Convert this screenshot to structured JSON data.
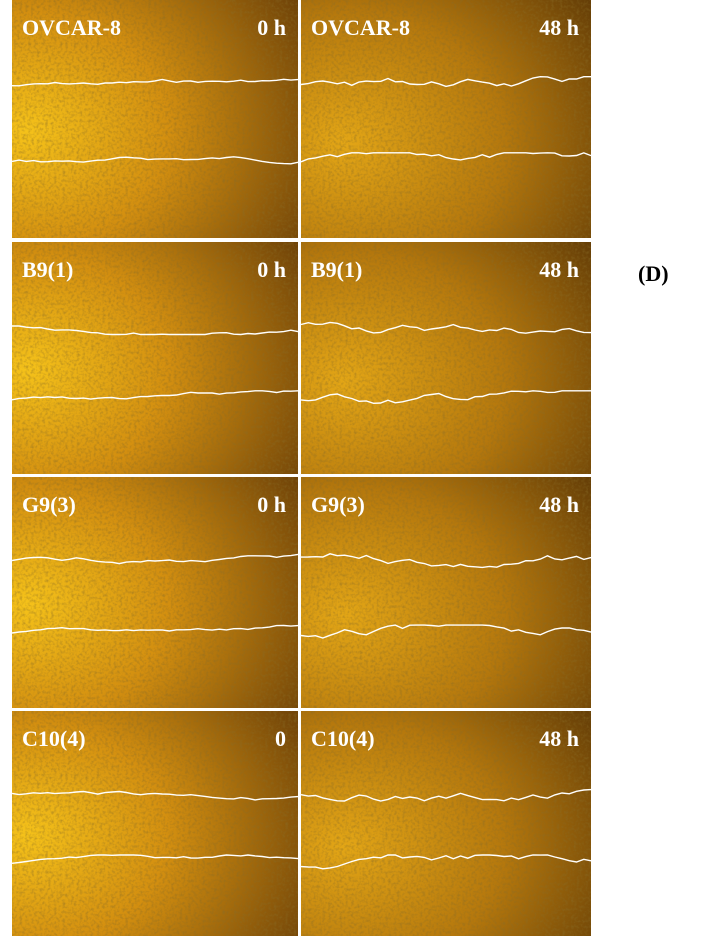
{
  "figure": {
    "panel_label": "(D)",
    "panels": [
      {
        "label": "OVCAR-8",
        "time": "0 h"
      },
      {
        "label": "OVCAR-8",
        "time": "48 h"
      },
      {
        "label": "B9(1)",
        "time": "0 h"
      },
      {
        "label": "B9(1)",
        "time": "48 h"
      },
      {
        "label": "G9(3)",
        "time": "0 h"
      },
      {
        "label": "G9(3)",
        "time": "48 h"
      },
      {
        "label": "C10(4)",
        "time": "0"
      },
      {
        "label": "C10(4)",
        "time": "48 h"
      }
    ]
  }
}
